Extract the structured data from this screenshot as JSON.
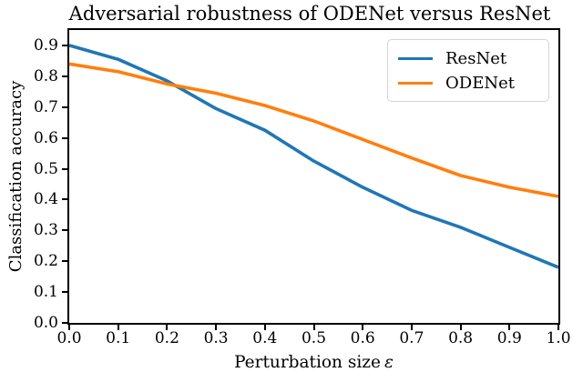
{
  "chart_data": {
    "type": "line",
    "title": "Adversarial robustness of ODENet versus ResNet",
    "xlabel": "Perturbation size ε",
    "xlabel_prefix": "Perturbation size",
    "xlabel_symbol": "ε",
    "ylabel": "Classification accuracy",
    "xlim": [
      0.0,
      1.0
    ],
    "ylim": [
      0.0,
      0.95
    ],
    "xticks": [
      0.0,
      0.1,
      0.2,
      0.3,
      0.4,
      0.5,
      0.6,
      0.7,
      0.8,
      0.9,
      1.0
    ],
    "yticks": [
      0.0,
      0.1,
      0.2,
      0.3,
      0.4,
      0.5,
      0.6,
      0.7,
      0.8,
      0.9
    ],
    "grid": false,
    "legend_position": "upper right",
    "x": [
      0.0,
      0.1,
      0.2,
      0.3,
      0.4,
      0.5,
      0.6,
      0.7,
      0.8,
      0.9,
      1.0
    ],
    "series": [
      {
        "name": "ResNet",
        "color": "#1f77b4",
        "values": [
          0.9,
          0.855,
          0.785,
          0.695,
          0.625,
          0.525,
          0.44,
          0.365,
          0.31,
          0.245,
          0.18
        ]
      },
      {
        "name": "ODENet",
        "color": "#ff7f0e",
        "values": [
          0.84,
          0.815,
          0.775,
          0.745,
          0.705,
          0.655,
          0.595,
          0.535,
          0.478,
          0.44,
          0.41
        ]
      }
    ]
  },
  "colors": {
    "frame": "#000000",
    "legend_border": "#d4d4d4",
    "background": "#ffffff"
  }
}
